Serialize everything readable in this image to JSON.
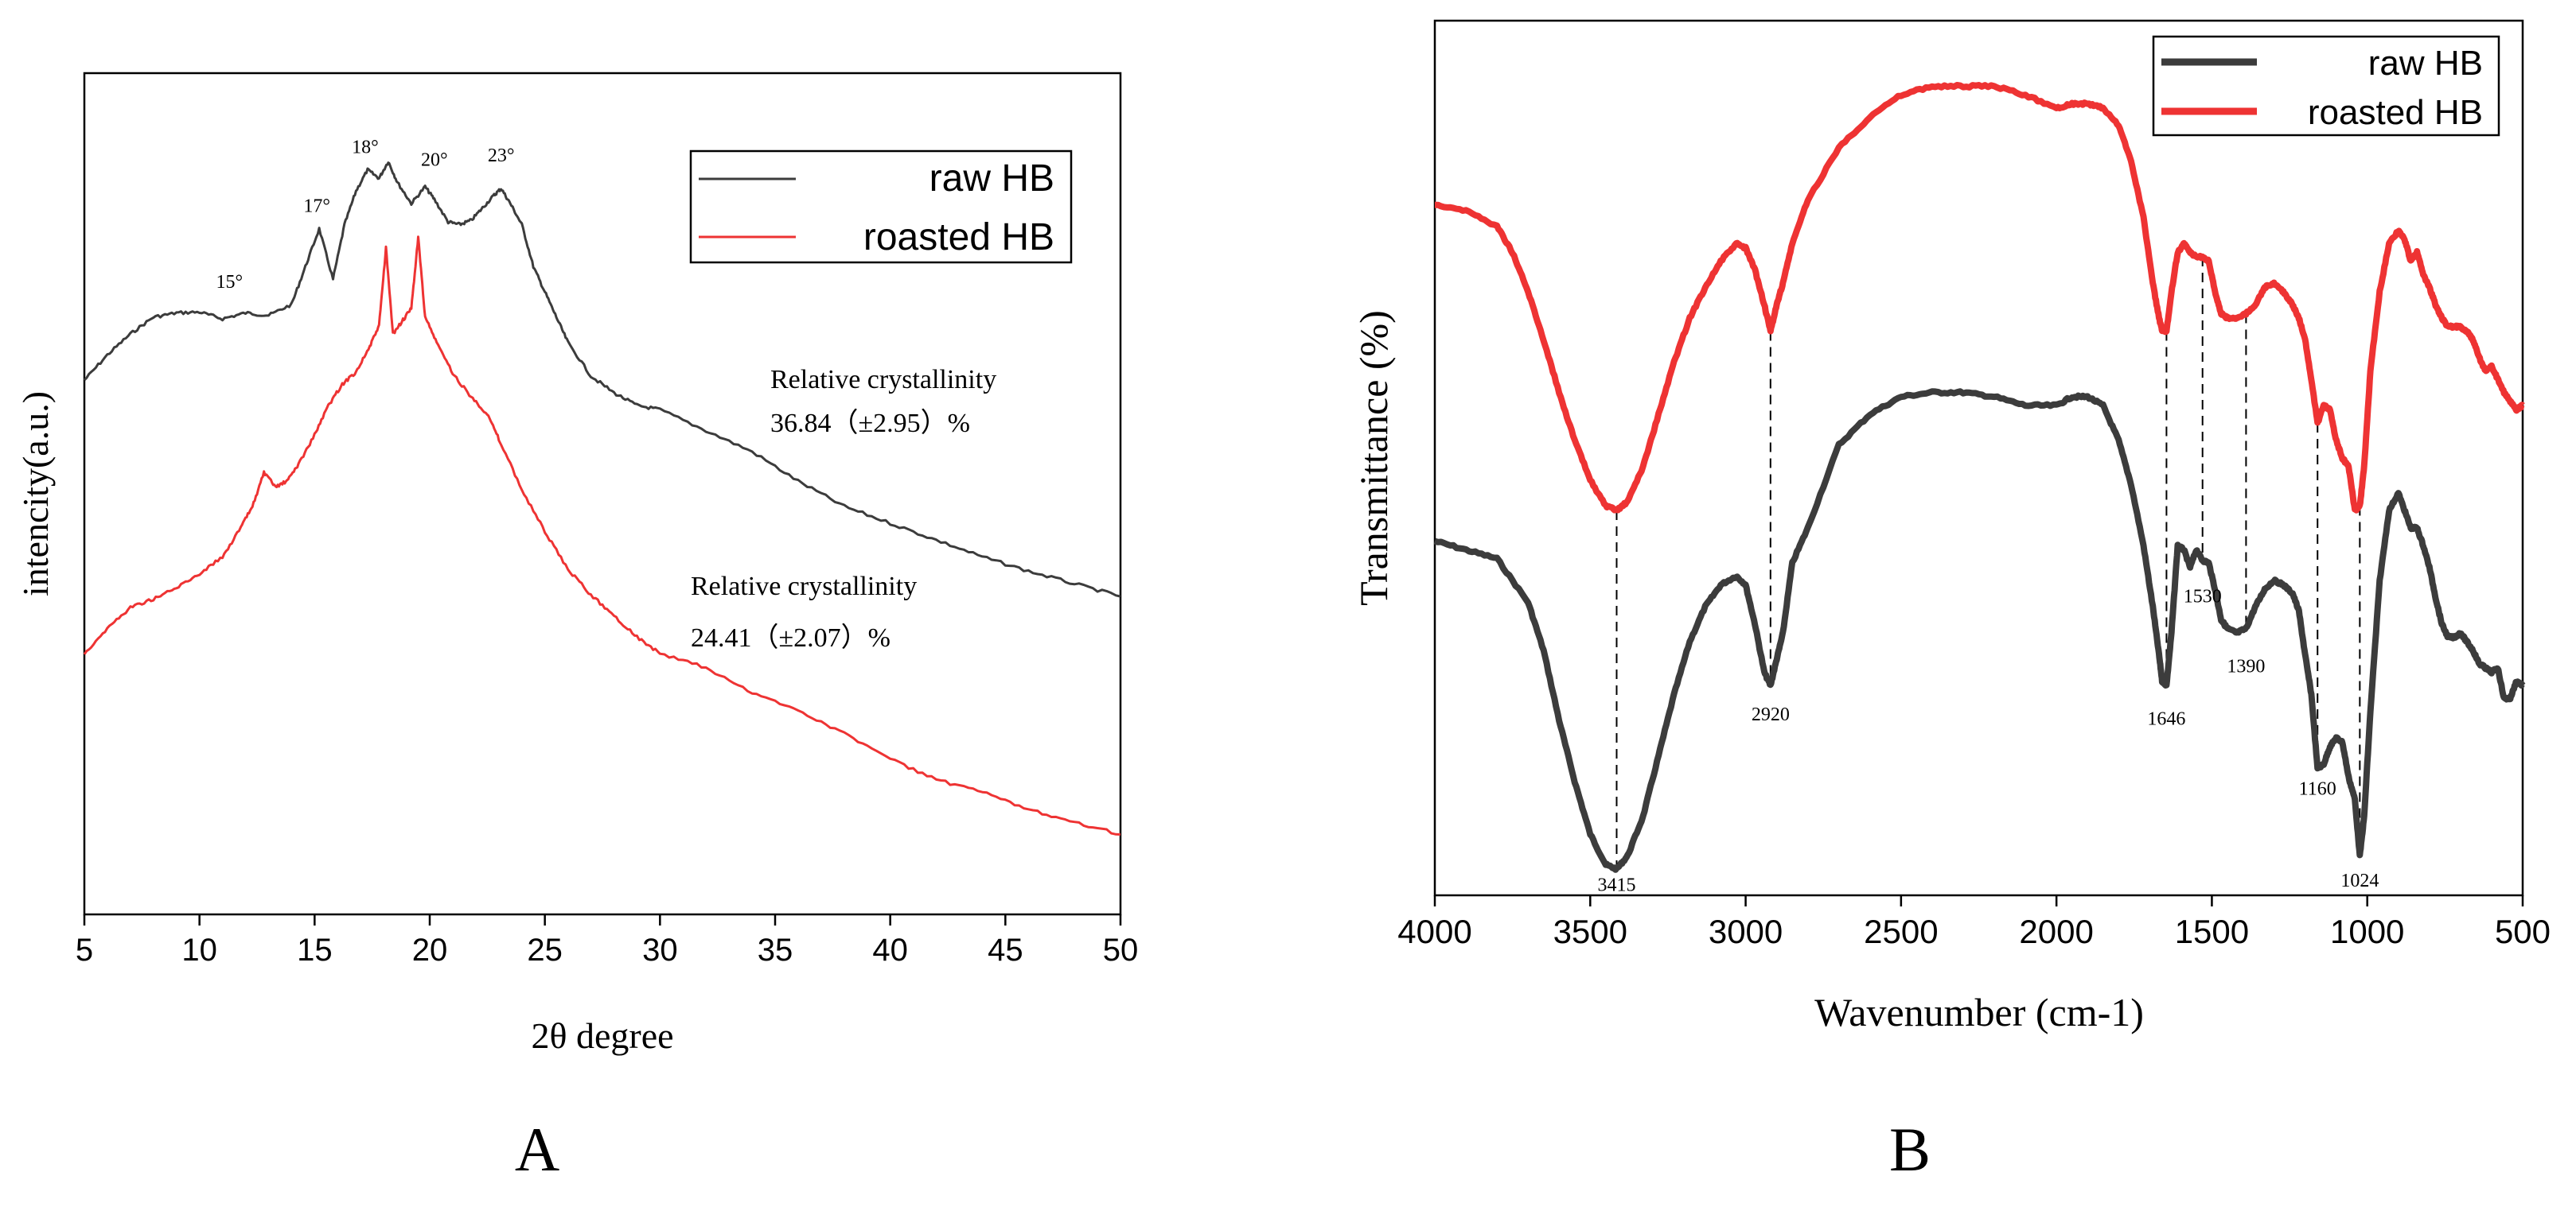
{
  "chart_data": [
    {
      "panel": "A",
      "panel_label": "A",
      "type": "line",
      "title": "",
      "xlabel": "2θ  degree",
      "ylabel": "intencity(a.u.)",
      "xlim": [
        5,
        50
      ],
      "ylim": [
        0,
        100
      ],
      "xticks": [
        5,
        10,
        15,
        20,
        25,
        30,
        35,
        40,
        45,
        50
      ],
      "grid": false,
      "legend_position": "top-right",
      "series": [
        {
          "name": "raw HB",
          "color": "#3c3c3c",
          "x": [
            5,
            6,
            7,
            8,
            9,
            10,
            11,
            12,
            13,
            14,
            14.6,
            15.2,
            15.8,
            16.3,
            16.8,
            17.3,
            17.8,
            18.2,
            18.6,
            19.2,
            19.8,
            20.2,
            20.8,
            21.3,
            21.8,
            22.3,
            22.8,
            23.1,
            23.5,
            24,
            24.5,
            25,
            25.5,
            26,
            27,
            28,
            29,
            30,
            32,
            34,
            36,
            38,
            40,
            42,
            44,
            46,
            48,
            50
          ],
          "y": [
            63.5,
            66.5,
            69,
            71,
            71.5,
            71.6,
            70.8,
            71.5,
            71.2,
            72.5,
            77,
            81.5,
            75.5,
            82,
            86,
            88.5,
            87.5,
            89.5,
            87,
            84.5,
            86.5,
            85,
            82.3,
            82,
            82.5,
            84,
            85.5,
            86.3,
            84.5,
            82,
            77,
            74,
            71,
            68,
            64,
            62,
            60.5,
            60,
            57.5,
            55,
            51.5,
            48.5,
            46.5,
            44.5,
            42.5,
            40.8,
            39.3,
            37.8
          ]
        },
        {
          "name": "roasted HB",
          "color": "#ee3333",
          "x": [
            5,
            6,
            7,
            8,
            9,
            10,
            11,
            11.8,
            12.3,
            12.8,
            13.3,
            13.8,
            14.3,
            15,
            15.6,
            16.2,
            16.8,
            17.4,
            17.8,
            18.1,
            18.4,
            18.8,
            19.2,
            19.5,
            19.8,
            20.3,
            21,
            21.8,
            22.5,
            23,
            24,
            25,
            26,
            27,
            28,
            29,
            30,
            32,
            34,
            36,
            38,
            40,
            42,
            44,
            46,
            48,
            50
          ],
          "y": [
            31,
            34,
            36.5,
            37.5,
            38.8,
            40.5,
            42.5,
            46,
            48.5,
            52.5,
            50.8,
            51.5,
            53.5,
            57,
            60.5,
            63,
            64.5,
            67.5,
            70,
            79.2,
            69,
            70.5,
            72,
            80.5,
            71,
            68,
            64.3,
            61.5,
            59.5,
            56.5,
            50.5,
            45.5,
            41,
            38,
            35.5,
            33,
            31,
            29.3,
            26.3,
            24.3,
            21.5,
            18.5,
            16,
            14.5,
            12.5,
            11,
            9.5
          ]
        }
      ],
      "peak_labels": [
        "15°",
        "17°",
        "18°",
        "20°",
        "23°"
      ],
      "peak_positions": [
        11.3,
        15.1,
        17.2,
        20.2,
        23.1
      ],
      "peak_label_y": [
        74.5,
        83.5,
        90.5,
        89,
        89.5
      ],
      "annotations": [
        {
          "series": "raw HB",
          "line1": "Relative crystallinity",
          "line2": "36.84（±2.95）%"
        },
        {
          "series": "roasted HB",
          "line1": "Relative crystallinity",
          "line2": "24.41（±2.07）%"
        }
      ]
    },
    {
      "panel": "B",
      "panel_label": "B",
      "type": "line",
      "title": "",
      "xlabel": "Wavenumber (cm-1)",
      "ylabel": "Transmittance (%)",
      "xlim": [
        4000,
        500
      ],
      "x_reversed": true,
      "ylim": [
        0,
        100
      ],
      "xticks": [
        4000,
        3500,
        3000,
        2500,
        2000,
        1500,
        1000,
        500
      ],
      "grid": false,
      "legend_position": "top-right",
      "series": [
        {
          "name": "raw HB",
          "color": "#3c3c3c",
          "x": [
            4000,
            3900,
            3800,
            3700,
            3650,
            3600,
            3550,
            3500,
            3450,
            3415,
            3380,
            3330,
            3280,
            3230,
            3180,
            3130,
            3080,
            3030,
            3000,
            2970,
            2940,
            2920,
            2900,
            2880,
            2850,
            2800,
            2700,
            2600,
            2500,
            2400,
            2300,
            2200,
            2100,
            2000,
            1950,
            1900,
            1850,
            1800,
            1760,
            1720,
            1690,
            1670,
            1660,
            1646,
            1630,
            1610,
            1590,
            1570,
            1550,
            1530,
            1510,
            1490,
            1470,
            1450,
            1420,
            1390,
            1360,
            1330,
            1300,
            1270,
            1240,
            1220,
            1200,
            1180,
            1160,
            1140,
            1120,
            1100,
            1080,
            1060,
            1040,
            1024,
            1010,
            990,
            960,
            930,
            900,
            880,
            860,
            840,
            820,
            800,
            780,
            760,
            740,
            720,
            700,
            680,
            660,
            640,
            620,
            600,
            580,
            560,
            540,
            520,
            500
          ],
          "y": [
            40.5,
            39.5,
            38.5,
            33.5,
            28,
            20,
            13,
            7,
            3.5,
            3,
            4.5,
            9,
            16,
            23,
            29,
            33,
            35.5,
            36.5,
            35.5,
            31,
            25.5,
            24,
            27,
            30,
            38,
            42,
            51.5,
            55,
            57,
            57.5,
            57.5,
            57,
            56,
            56,
            57,
            57,
            56,
            52,
            47,
            40,
            33,
            27.5,
            24.5,
            24,
            30,
            40,
            39.5,
            37.5,
            39.5,
            38.3,
            38,
            35,
            31.5,
            30.5,
            30,
            30.5,
            33,
            35,
            36,
            35.5,
            34.5,
            32.5,
            27.5,
            23,
            14.5,
            15,
            17,
            18,
            17.5,
            13.5,
            11,
            4.5,
            9,
            21,
            36,
            44,
            46,
            44,
            42,
            42,
            40,
            37.5,
            34,
            31,
            29.5,
            29.5,
            30,
            29,
            28,
            26.5,
            26,
            25.5,
            26,
            22.5,
            22.5,
            24.5,
            24
          ]
        },
        {
          "name": "roasted HB",
          "color": "#ee3333",
          "x": [
            4000,
            3900,
            3800,
            3750,
            3700,
            3650,
            3600,
            3550,
            3500,
            3450,
            3415,
            3380,
            3330,
            3280,
            3230,
            3180,
            3130,
            3080,
            3030,
            3000,
            2970,
            2940,
            2920,
            2900,
            2880,
            2850,
            2800,
            2700,
            2600,
            2500,
            2400,
            2300,
            2200,
            2100,
            2000,
            1950,
            1900,
            1850,
            1800,
            1760,
            1720,
            1690,
            1670,
            1660,
            1646,
            1630,
            1610,
            1590,
            1570,
            1550,
            1530,
            1510,
            1490,
            1470,
            1450,
            1420,
            1390,
            1360,
            1330,
            1300,
            1270,
            1240,
            1220,
            1200,
            1180,
            1160,
            1140,
            1120,
            1100,
            1080,
            1060,
            1040,
            1024,
            1010,
            990,
            960,
            930,
            900,
            880,
            860,
            840,
            820,
            800,
            780,
            760,
            740,
            720,
            700,
            680,
            660,
            640,
            620,
            600,
            580,
            560,
            540,
            520,
            500
          ],
          "y": [
            79,
            78.3,
            76.5,
            73.5,
            69,
            63.5,
            57.5,
            52,
            47.5,
            44.5,
            44,
            45,
            49,
            55,
            61,
            66,
            69.5,
            72.5,
            74.5,
            74,
            71.5,
            67.5,
            64.5,
            67.5,
            70,
            74.5,
            79.5,
            85.5,
            89,
            91.5,
            92.5,
            92.5,
            92.5,
            91.5,
            90,
            90.5,
            90.5,
            90,
            88,
            84,
            77.5,
            70,
            66,
            64.5,
            64.5,
            69,
            73.5,
            74.5,
            73.5,
            73,
            73,
            72.5,
            69,
            66.5,
            66,
            66,
            66.5,
            67.5,
            69.5,
            70,
            69,
            67.5,
            66,
            63.5,
            59,
            54,
            56,
            55.5,
            52,
            50,
            49,
            44,
            44.5,
            49,
            60,
            69,
            74.5,
            76,
            75,
            72.5,
            73.5,
            71,
            69.5,
            67.5,
            66,
            65,
            65,
            65,
            64.5,
            63.5,
            61.5,
            60,
            60.5,
            59,
            57.5,
            56.5,
            55.5,
            56
          ]
        }
      ],
      "peak_labels": [
        "3415",
        "2920",
        "1646",
        "1530",
        "1390",
        "1160",
        "1024"
      ],
      "peak_positions": [
        3415,
        2920,
        1646,
        1530,
        1390,
        1160,
        1024
      ],
      "peak_label_y": [
        0.5,
        20,
        19.5,
        33.5,
        25.5,
        11.5,
        1
      ]
    }
  ]
}
